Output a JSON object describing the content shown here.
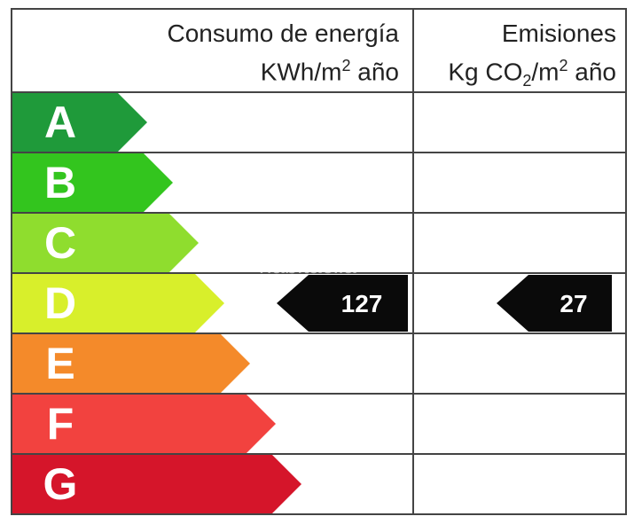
{
  "header": {
    "energy_title": "Consumo de energía",
    "energy_unit_base": "KWh/m",
    "energy_unit_exp": "2",
    "energy_unit_tail": " año",
    "emis_title": "Emisiones",
    "emis_unit_a": "Kg CO",
    "emis_unit_sub": "2",
    "emis_unit_b": "/m",
    "emis_unit_exp": "2",
    "emis_unit_tail": " año"
  },
  "rating": {
    "bands": [
      {
        "letter": "A",
        "color": "#1f9a3a"
      },
      {
        "letter": "B",
        "color": "#33c51e"
      },
      {
        "letter": "C",
        "color": "#8fdd2e"
      },
      {
        "letter": "D",
        "color": "#d8ef2b"
      },
      {
        "letter": "E",
        "color": "#f48a2a"
      },
      {
        "letter": "F",
        "color": "#f2423f"
      },
      {
        "letter": "G",
        "color": "#d5152a"
      }
    ],
    "current_band": "D",
    "energy_value": "127",
    "emissions_value": "27"
  },
  "watermark": "habitaclia"
}
